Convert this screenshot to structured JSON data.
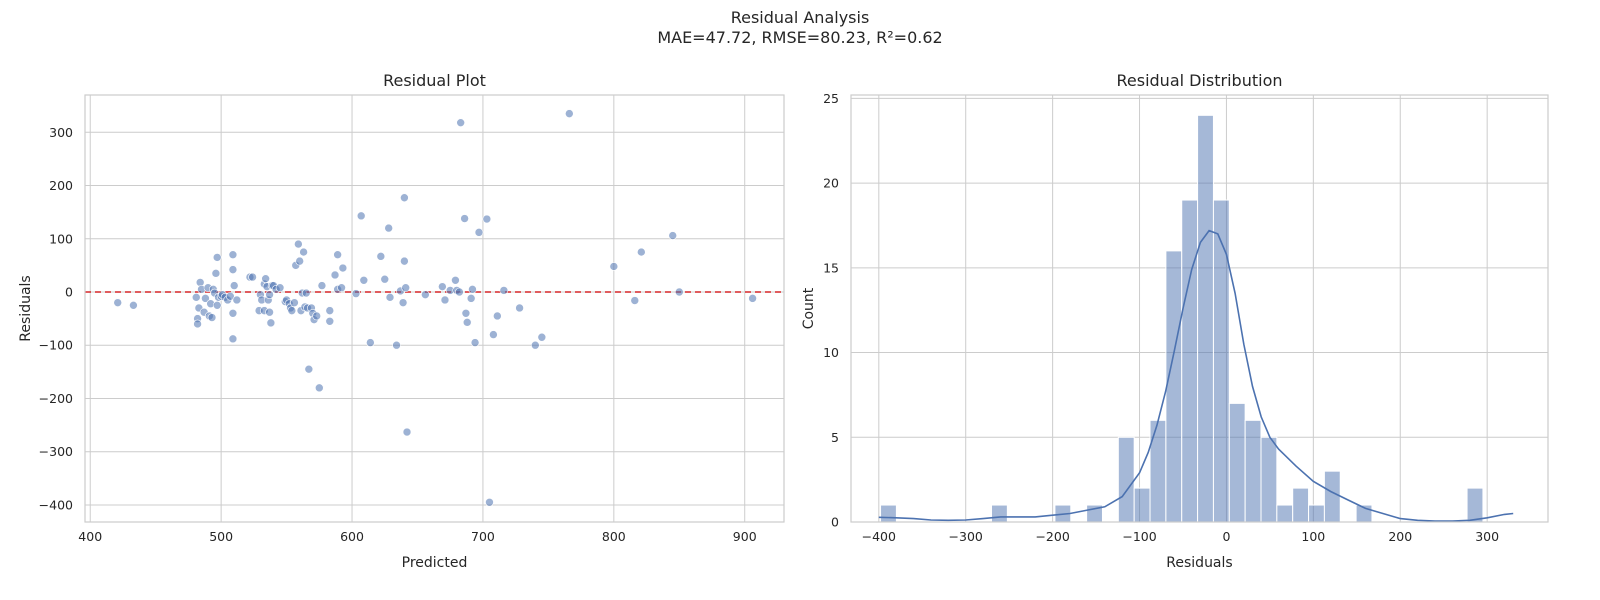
{
  "figure": {
    "title_line1": "Residual Analysis",
    "title_line2": "MAE=47.72, RMSE=80.23, R²=0.62"
  },
  "colors": {
    "point": "#4c72b0",
    "bar": "#4c72b0",
    "kde": "#4c72b0",
    "zero_line": "#d62728",
    "grid": "#cccccc",
    "spine": "#cccccc"
  },
  "chart_data": [
    {
      "type": "scatter",
      "title": "Residual Plot",
      "xlabel": "Predicted",
      "ylabel": "Residuals",
      "xlim": [
        396,
        930
      ],
      "ylim": [
        -432,
        370
      ],
      "xticks": [
        400,
        500,
        600,
        700,
        800,
        900
      ],
      "yticks": [
        -400,
        -300,
        -200,
        -100,
        0,
        100,
        200,
        300
      ],
      "grid": true,
      "reference_line": {
        "y": 0,
        "style": "dashed"
      },
      "points": [
        [
          421,
          -20
        ],
        [
          433,
          -25
        ],
        [
          481,
          -10
        ],
        [
          482,
          -50
        ],
        [
          482,
          -60
        ],
        [
          483,
          -30
        ],
        [
          484,
          18
        ],
        [
          485,
          5
        ],
        [
          487,
          -38
        ],
        [
          488,
          -12
        ],
        [
          490,
          8
        ],
        [
          491,
          -45
        ],
        [
          492,
          -22
        ],
        [
          493,
          -48
        ],
        [
          494,
          5
        ],
        [
          495,
          -2
        ],
        [
          496,
          35
        ],
        [
          497,
          -25
        ],
        [
          497,
          65
        ],
        [
          498,
          -10
        ],
        [
          500,
          -8
        ],
        [
          501,
          -5
        ],
        [
          503,
          -10
        ],
        [
          505,
          -15
        ],
        [
          507,
          -8
        ],
        [
          509,
          70
        ],
        [
          509,
          42
        ],
        [
          509,
          -40
        ],
        [
          509,
          -88
        ],
        [
          510,
          12
        ],
        [
          512,
          -15
        ],
        [
          522,
          28
        ],
        [
          524,
          28
        ],
        [
          529,
          -35
        ],
        [
          530,
          -5
        ],
        [
          531,
          -15
        ],
        [
          533,
          15
        ],
        [
          533,
          -35
        ],
        [
          534,
          25
        ],
        [
          535,
          10
        ],
        [
          536,
          -15
        ],
        [
          537,
          -5
        ],
        [
          537,
          -38
        ],
        [
          538,
          -58
        ],
        [
          539,
          12
        ],
        [
          540,
          12
        ],
        [
          542,
          5
        ],
        [
          545,
          8
        ],
        [
          549,
          -18
        ],
        [
          550,
          -15
        ],
        [
          552,
          -22
        ],
        [
          553,
          -30
        ],
        [
          554,
          -35
        ],
        [
          556,
          -20
        ],
        [
          557,
          50
        ],
        [
          559,
          90
        ],
        [
          560,
          58
        ],
        [
          561,
          -35
        ],
        [
          562,
          -2
        ],
        [
          563,
          75
        ],
        [
          564,
          -28
        ],
        [
          565,
          -2
        ],
        [
          566,
          -30
        ],
        [
          567,
          -145
        ],
        [
          569,
          -30
        ],
        [
          570,
          -40
        ],
        [
          571,
          -52
        ],
        [
          573,
          -45
        ],
        [
          575,
          -180
        ],
        [
          577,
          12
        ],
        [
          583,
          -35
        ],
        [
          583,
          -55
        ],
        [
          587,
          32
        ],
        [
          589,
          70
        ],
        [
          589,
          5
        ],
        [
          592,
          8
        ],
        [
          593,
          45
        ],
        [
          603,
          -3
        ],
        [
          607,
          143
        ],
        [
          609,
          22
        ],
        [
          614,
          -95
        ],
        [
          622,
          67
        ],
        [
          625,
          24
        ],
        [
          628,
          120
        ],
        [
          629,
          -10
        ],
        [
          634,
          -100
        ],
        [
          637,
          2
        ],
        [
          639,
          -20
        ],
        [
          640,
          58
        ],
        [
          641,
          8
        ],
        [
          640,
          177
        ],
        [
          642,
          -263
        ],
        [
          656,
          -5
        ],
        [
          669,
          10
        ],
        [
          671,
          -15
        ],
        [
          675,
          3
        ],
        [
          679,
          22
        ],
        [
          680,
          3
        ],
        [
          682,
          0
        ],
        [
          683,
          318
        ],
        [
          686,
          138
        ],
        [
          687,
          -40
        ],
        [
          688,
          -57
        ],
        [
          691,
          -12
        ],
        [
          692,
          5
        ],
        [
          694,
          -95
        ],
        [
          697,
          112
        ],
        [
          703,
          137
        ],
        [
          705,
          -395
        ],
        [
          708,
          -80
        ],
        [
          711,
          -45
        ],
        [
          716,
          3
        ],
        [
          728,
          -30
        ],
        [
          740,
          -100
        ],
        [
          745,
          -85
        ],
        [
          766,
          335
        ],
        [
          800,
          48
        ],
        [
          816,
          -16
        ],
        [
          821,
          75
        ],
        [
          845,
          106
        ],
        [
          850,
          0
        ],
        [
          906,
          -12
        ]
      ]
    },
    {
      "type": "bar",
      "title": "Residual Distribution",
      "xlabel": "Residuals",
      "ylabel": "Count",
      "xlim": [
        -432,
        370
      ],
      "ylim": [
        0,
        25.2
      ],
      "xticks": [
        -400,
        -300,
        -200,
        -100,
        0,
        100,
        200,
        300
      ],
      "yticks": [
        0,
        5,
        10,
        15,
        20,
        25
      ],
      "grid": true,
      "bin_start": -398,
      "bin_width": 18.24,
      "counts": [
        1,
        0,
        0,
        0,
        0,
        0,
        0,
        1,
        0,
        0,
        0,
        1,
        0,
        1,
        0,
        5,
        2,
        6,
        16,
        19,
        24,
        19,
        7,
        6,
        5,
        1,
        2,
        1,
        3,
        0,
        1,
        0,
        0,
        0,
        0,
        0,
        0,
        2
      ],
      "kde": {
        "x": [
          -400,
          -380,
          -360,
          -340,
          -320,
          -300,
          -280,
          -260,
          -240,
          -220,
          -200,
          -180,
          -160,
          -140,
          -120,
          -100,
          -90,
          -80,
          -70,
          -60,
          -50,
          -40,
          -30,
          -20,
          -10,
          0,
          10,
          20,
          30,
          40,
          50,
          60,
          70,
          80,
          100,
          120,
          140,
          160,
          180,
          200,
          220,
          240,
          260,
          280,
          300,
          320,
          330
        ],
        "y": [
          0.28,
          0.25,
          0.2,
          0.12,
          0.1,
          0.12,
          0.2,
          0.3,
          0.3,
          0.3,
          0.4,
          0.5,
          0.7,
          0.9,
          1.5,
          2.9,
          4.1,
          5.7,
          7.7,
          10.1,
          12.6,
          14.9,
          16.5,
          17.2,
          17.0,
          15.8,
          13.5,
          10.5,
          8.0,
          6.2,
          5.0,
          4.3,
          3.8,
          3.3,
          2.4,
          1.8,
          1.3,
          0.8,
          0.5,
          0.2,
          0.1,
          0.06,
          0.06,
          0.1,
          0.25,
          0.45,
          0.5
        ]
      }
    }
  ]
}
